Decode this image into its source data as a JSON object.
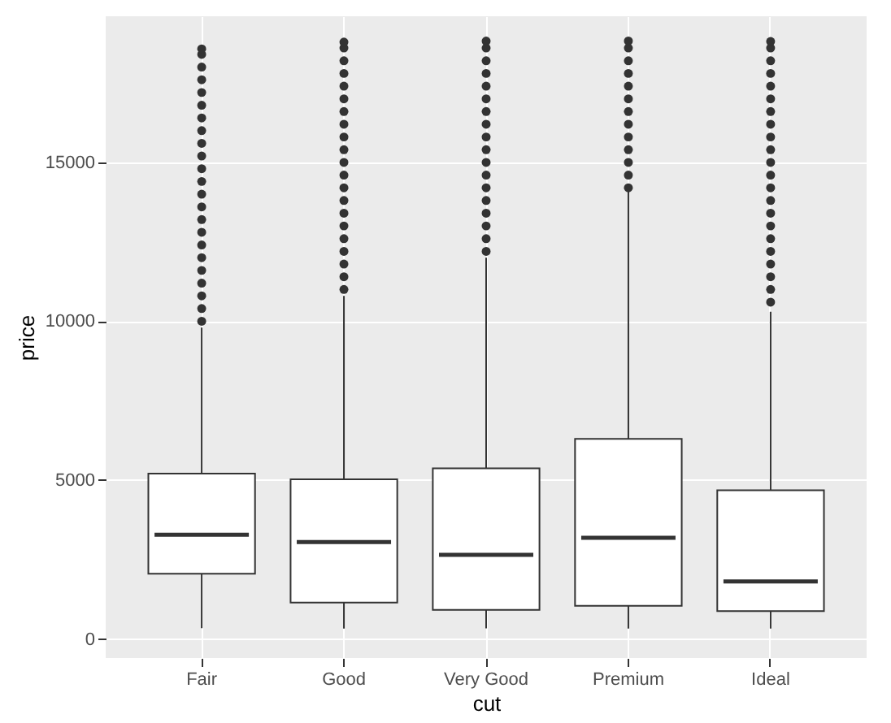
{
  "chart_data": {
    "type": "box",
    "xlabel": "cut",
    "ylabel": "price",
    "categories": [
      "Fair",
      "Good",
      "Very Good",
      "Premium",
      "Ideal"
    ],
    "boxes": [
      {
        "low": 337,
        "q1": 2050,
        "median": 3282,
        "q3": 5206,
        "high": 9800,
        "outliers": [
          10000,
          10400,
          10800,
          11200,
          11600,
          12000,
          12400,
          12800,
          13200,
          13600,
          14000,
          14400,
          14800,
          15200,
          15600,
          16000,
          16400,
          16800,
          17200,
          17600,
          18000,
          18400,
          18574
        ]
      },
      {
        "low": 327,
        "q1": 1145,
        "median": 3050,
        "q3": 5028,
        "high": 10800,
        "outliers": [
          11000,
          11400,
          11800,
          12200,
          12600,
          13000,
          13400,
          13800,
          14200,
          14600,
          15000,
          15400,
          15800,
          16200,
          16600,
          17000,
          17400,
          17800,
          18200,
          18600,
          18788
        ]
      },
      {
        "low": 336,
        "q1": 912,
        "median": 2648,
        "q3": 5373,
        "high": 12000,
        "outliers": [
          12200,
          12600,
          13000,
          13400,
          13800,
          14200,
          14600,
          15000,
          15400,
          15800,
          16200,
          16600,
          17000,
          17400,
          17800,
          18200,
          18600,
          18818
        ]
      },
      {
        "low": 326,
        "q1": 1046,
        "median": 3185,
        "q3": 6296,
        "high": 14100,
        "outliers": [
          14200,
          14600,
          15000,
          15400,
          15800,
          16200,
          16600,
          17000,
          17400,
          17800,
          18200,
          18600,
          18823
        ]
      },
      {
        "low": 326,
        "q1": 878,
        "median": 1810,
        "q3": 4678,
        "high": 10300,
        "outliers": [
          10600,
          11000,
          11400,
          11800,
          12200,
          12600,
          13000,
          13400,
          13800,
          14200,
          14600,
          15000,
          15400,
          15800,
          16200,
          16600,
          17000,
          17400,
          17800,
          18200,
          18600,
          18806
        ]
      }
    ],
    "ylim": [
      -600,
      19600
    ],
    "yticks": [
      0,
      5000,
      10000,
      15000
    ],
    "grid": true
  }
}
